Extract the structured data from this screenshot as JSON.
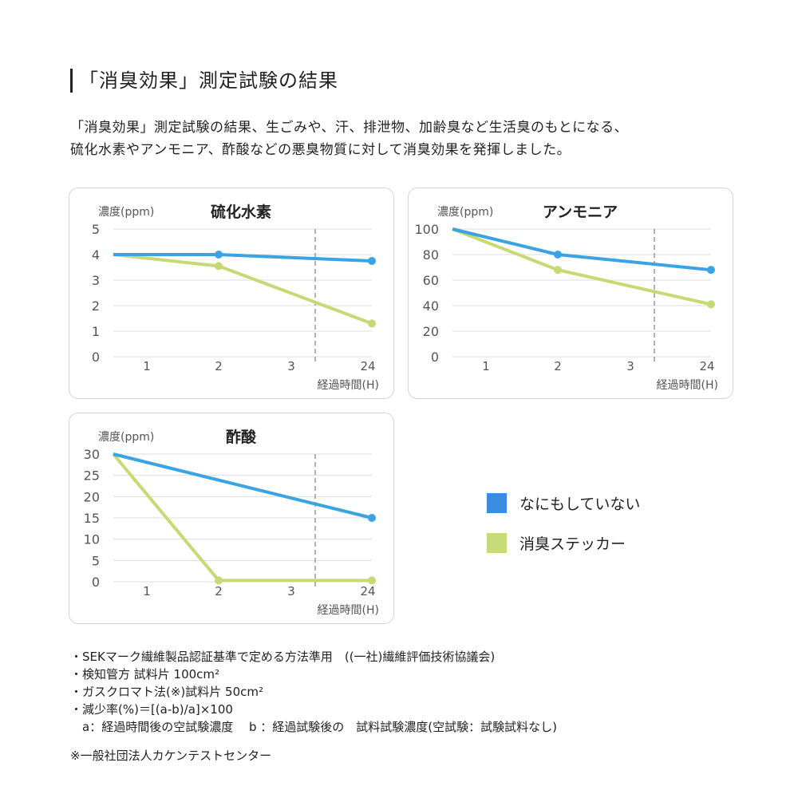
{
  "heading": "「消臭効果」測定試験の結果",
  "intro": [
    "「消臭効果」測定試験の結果、生ごみや、汗、排泄物、加齢臭など生活臭のもとになる、",
    "硫化水素やアンモニア、酢酸などの悪臭物質に対して消臭効果を発揮しました。"
  ],
  "colors": {
    "none": "#3aa3e3",
    "sticker": "#c5da72",
    "legend_none": "#3b8de0",
    "legend_sticker": "#c8db7a"
  },
  "legend": [
    {
      "label": "なにもしていない"
    },
    {
      "label": "消臭ステッカー"
    }
  ],
  "chart_data": [
    {
      "type": "line",
      "title": "硫化水素",
      "ylabel": "濃度(ppm)",
      "xlabel": "経過時間(H)",
      "x_ticks": [
        "1",
        "2",
        "3",
        "24"
      ],
      "y_ticks": [
        0,
        1,
        2,
        3,
        4,
        5
      ],
      "ylim": [
        0,
        5
      ],
      "grid": true,
      "x": [
        0,
        2,
        24
      ],
      "series": [
        {
          "name": "なにもしていない",
          "values": [
            4.0,
            4.0,
            3.75
          ]
        },
        {
          "name": "消臭ステッカー",
          "values": [
            4.0,
            3.55,
            1.3
          ]
        }
      ]
    },
    {
      "type": "line",
      "title": "アンモニア",
      "ylabel": "濃度(ppm)",
      "xlabel": "経過時間(H)",
      "x_ticks": [
        "1",
        "2",
        "3",
        "24"
      ],
      "y_ticks": [
        0,
        20,
        40,
        60,
        80,
        100
      ],
      "ylim": [
        0,
        100
      ],
      "grid": true,
      "x": [
        0,
        2,
        24
      ],
      "series": [
        {
          "name": "なにもしていない",
          "values": [
            100,
            80,
            68
          ]
        },
        {
          "name": "消臭ステッカー",
          "values": [
            100,
            68,
            41
          ]
        }
      ]
    },
    {
      "type": "line",
      "title": "酢酸",
      "ylabel": "濃度(ppm)",
      "xlabel": "経過時間(H)",
      "x_ticks": [
        "1",
        "2",
        "3",
        "24"
      ],
      "y_ticks": [
        0,
        5,
        10,
        15,
        20,
        25,
        30
      ],
      "ylim": [
        0,
        30
      ],
      "grid": true,
      "x": [
        0,
        24
      ],
      "x2": [
        0,
        2,
        24
      ],
      "series": [
        {
          "name": "なにもしていない",
          "x": [
            0,
            24
          ],
          "values": [
            30,
            15
          ]
        },
        {
          "name": "消臭ステッカー",
          "x": [
            0,
            2,
            24
          ],
          "values": [
            30,
            0.3,
            0.3
          ]
        }
      ]
    }
  ],
  "notes": [
    "・SEKマーク繊維製品認証基準で定める方法準用　((一社)繊維評価技術協議会)",
    "・検知管方 試料片 100cm²",
    "・ガスクロマト法(※)試料片 50cm²",
    "・減少率(%)＝[(a-b)/a]×100",
    "　a：経過時間後の空試験濃度　 b ：経過試験後の　試料試験濃度(空試験：試験試料なし)"
  ],
  "footnote": "※一般社団法人カケンテストセンター"
}
